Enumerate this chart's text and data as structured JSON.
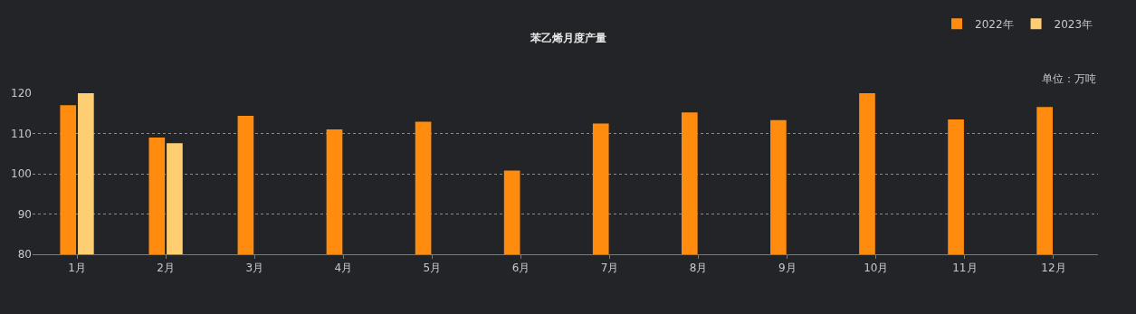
{
  "chart_data": {
    "type": "bar",
    "title": "苯乙烯月度产量",
    "annotations": [
      "单位：万吨"
    ],
    "categories": [
      "1月",
      "2月",
      "3月",
      "4月",
      "5月",
      "6月",
      "7月",
      "8月",
      "9月",
      "10月",
      "11月",
      "12月"
    ],
    "series": [
      {
        "name": "2022年",
        "color": "#ff8c0e",
        "values": [
          117,
          109,
          114.4,
          111,
          112.9,
          100.8,
          112.5,
          115.2,
          113.3,
          120,
          113.5,
          116.6
        ]
      },
      {
        "name": "2023年",
        "color": "#ffcd72",
        "values": [
          120,
          107.6,
          null,
          null,
          null,
          null,
          null,
          null,
          null,
          null,
          null,
          null
        ]
      }
    ],
    "ylim": [
      80,
      120
    ],
    "yticks": [
      80,
      90,
      100,
      110,
      120
    ],
    "grid": "y",
    "legend": "top right"
  }
}
